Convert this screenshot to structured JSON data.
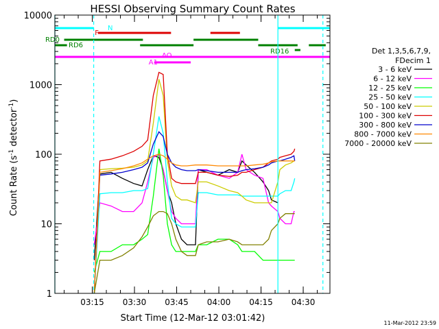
{
  "chart_data": {
    "type": "line",
    "title": "HESSI Observing Summary Count Rates",
    "xlabel": "Start Time (12-Mar-12 03:01:42)",
    "ylabel": "Count Rate (s⁻¹ detector⁻¹)",
    "ylabel_main": "Count Rate (s",
    "ylabel_sup1": "-1",
    "ylabel_mid": " detector",
    "ylabel_sup2": "-1",
    "ylabel_end": ")",
    "footer": "11-Mar-2012 23:59",
    "y_scale": "log",
    "ylim": [
      1,
      10000
    ],
    "xlim": [
      "03:01:42",
      "04:39:30"
    ],
    "x_ticks": [
      "03:15",
      "03:30",
      "03:45",
      "04:00",
      "04:15",
      "04:30"
    ],
    "y_ticks": [
      "1",
      "10",
      "100",
      "1000",
      "10000"
    ],
    "grid": false,
    "legend": {
      "placement": "right",
      "header": [
        "Det 1,3,5,6,7,9,",
        "FDecim 1"
      ],
      "entries": [
        {
          "label": "3 - 6 keV",
          "color": "#000000"
        },
        {
          "label": "6 - 12 keV",
          "color": "#ff00ff"
        },
        {
          "label": "12 - 25 keV",
          "color": "#00ff00"
        },
        {
          "label": "25 - 50 keV",
          "color": "#00ffff"
        },
        {
          "label": "50 - 100 keV",
          "color": "#cccc00"
        },
        {
          "label": "100 - 300 keV",
          "color": "#dd0000"
        },
        {
          "label": "300 - 800 keV",
          "color": "#0000cc"
        },
        {
          "label": "800 - 7000 keV",
          "color": "#ff8800"
        },
        {
          "label": "7000 - 20000 keV",
          "color": "#808000"
        }
      ]
    },
    "flag_bars": [
      {
        "name": "N",
        "color": "#00ffff",
        "segments": [
          [
            "03:01:42",
            "03:15:30"
          ],
          [
            "04:21:00",
            "04:39:30"
          ]
        ]
      },
      {
        "name": "F",
        "color": "#dd0000",
        "segments": [
          [
            "03:17:00",
            "03:43:00"
          ],
          [
            "03:57:00",
            "04:07:30"
          ]
        ]
      },
      {
        "name": "RD0",
        "color": "#008000",
        "segments": [
          [
            "03:05:00",
            "03:33:00"
          ],
          [
            "03:51:00",
            "04:14:00"
          ]
        ]
      },
      {
        "name": "RD6",
        "color": "#008000",
        "segments": [
          [
            "03:01:42",
            "03:06:00"
          ],
          [
            "03:32:00",
            "03:51:00"
          ],
          [
            "04:14:00",
            "04:28:00"
          ],
          [
            "04:32:00",
            "04:38:00"
          ]
        ]
      },
      {
        "name": "RD16",
        "color": "#008000",
        "segments": [
          [
            "04:27:00",
            "04:29:00"
          ]
        ]
      },
      {
        "name": "AO",
        "color": "#ff00ff",
        "segments": [
          [
            "03:01:42",
            "04:39:30"
          ]
        ]
      },
      {
        "name": "A1",
        "color": "#ff00ff",
        "segments": [
          [
            "03:37:00",
            "03:50:00"
          ]
        ]
      }
    ],
    "vlines_solid": [
      "03:01:42",
      "04:21:00"
    ],
    "vlines_dashed": [
      "03:15:30",
      "04:37:00"
    ],
    "x_minutes": [
      0,
      13.8,
      14,
      16,
      20,
      24,
      28,
      31,
      33,
      35,
      37,
      38.5,
      40,
      41.5,
      43,
      45,
      47,
      50,
      51,
      54,
      58,
      62,
      65,
      66.5,
      68,
      71,
      74,
      76,
      77,
      79.3,
      80,
      82,
      84,
      85,
      85.3,
      95.3,
      97.8
    ],
    "series": [
      {
        "name": "3 - 6 keV",
        "values": [
          null,
          null,
          3,
          52,
          55,
          45,
          38,
          35,
          60,
          95,
          90,
          60,
          30,
          20,
          10,
          6,
          5,
          5,
          60,
          55,
          50,
          60,
          55,
          80,
          70,
          55,
          40,
          30,
          22,
          20,
          null,
          null,
          null,
          null,
          null,
          null,
          null
        ]
      },
      {
        "name": "6 - 12 keV",
        "values": [
          null,
          null,
          5,
          20,
          18,
          15,
          15,
          20,
          40,
          90,
          100,
          60,
          30,
          15,
          12,
          10,
          10,
          10,
          60,
          60,
          50,
          45,
          55,
          100,
          60,
          50,
          45,
          20,
          18,
          15,
          12,
          10,
          10,
          15,
          15,
          null,
          null
        ]
      },
      {
        "name": "12 - 25 keV",
        "values": [
          null,
          null,
          2,
          4,
          4,
          5,
          5,
          6,
          7,
          25,
          120,
          50,
          10,
          5,
          4,
          4,
          4,
          4,
          5,
          5,
          6,
          6,
          5,
          4,
          4,
          4,
          3,
          3,
          3,
          3,
          3,
          3,
          3,
          3,
          3,
          null,
          null
        ]
      },
      {
        "name": "25 - 50 keV",
        "values": [
          null,
          null,
          1,
          27,
          28,
          28,
          30,
          30,
          32,
          100,
          350,
          200,
          40,
          12,
          10,
          9,
          9,
          9,
          28,
          28,
          26,
          26,
          26,
          25,
          25,
          25,
          25,
          25,
          25,
          25,
          27,
          30,
          30,
          40,
          45,
          null,
          null
        ]
      },
      {
        "name": "50 - 100 keV",
        "values": [
          null,
          null,
          1,
          60,
          62,
          63,
          65,
          70,
          80,
          280,
          1200,
          700,
          80,
          35,
          25,
          22,
          22,
          20,
          40,
          40,
          35,
          30,
          28,
          25,
          22,
          20,
          20,
          20,
          20,
          40,
          60,
          70,
          75,
          80,
          80,
          null,
          null
        ]
      },
      {
        "name": "100 - 300 keV",
        "values": [
          null,
          null,
          1,
          80,
          85,
          95,
          110,
          130,
          160,
          700,
          1500,
          1400,
          100,
          45,
          40,
          38,
          38,
          38,
          55,
          55,
          50,
          48,
          50,
          55,
          55,
          60,
          65,
          75,
          80,
          85,
          90,
          95,
          100,
          110,
          120,
          null,
          null
        ]
      },
      {
        "name": "300 - 800 keV",
        "values": [
          null,
          null,
          1,
          50,
          52,
          55,
          60,
          65,
          75,
          140,
          210,
          180,
          100,
          75,
          65,
          60,
          58,
          58,
          60,
          58,
          55,
          55,
          55,
          58,
          60,
          62,
          65,
          70,
          75,
          80,
          80,
          85,
          90,
          95,
          80,
          null,
          null
        ]
      },
      {
        "name": "800 - 7000 keV",
        "values": [
          null,
          null,
          1,
          55,
          58,
          62,
          68,
          75,
          85,
          95,
          100,
          95,
          85,
          75,
          70,
          68,
          68,
          70,
          70,
          70,
          68,
          68,
          68,
          68,
          68,
          70,
          72,
          75,
          78,
          80,
          80,
          80,
          80,
          80,
          80,
          null,
          null
        ]
      },
      {
        "name": "7000 - 20000 keV",
        "values": [
          null,
          null,
          1,
          3,
          3,
          3.5,
          4.5,
          6.5,
          9,
          13,
          15,
          15,
          14,
          10,
          6,
          4,
          3.5,
          3.5,
          5,
          5.5,
          5.5,
          6,
          5.5,
          5,
          5,
          5,
          5,
          6,
          8,
          10,
          12,
          14,
          14,
          14,
          14,
          null,
          null
        ]
      }
    ]
  }
}
